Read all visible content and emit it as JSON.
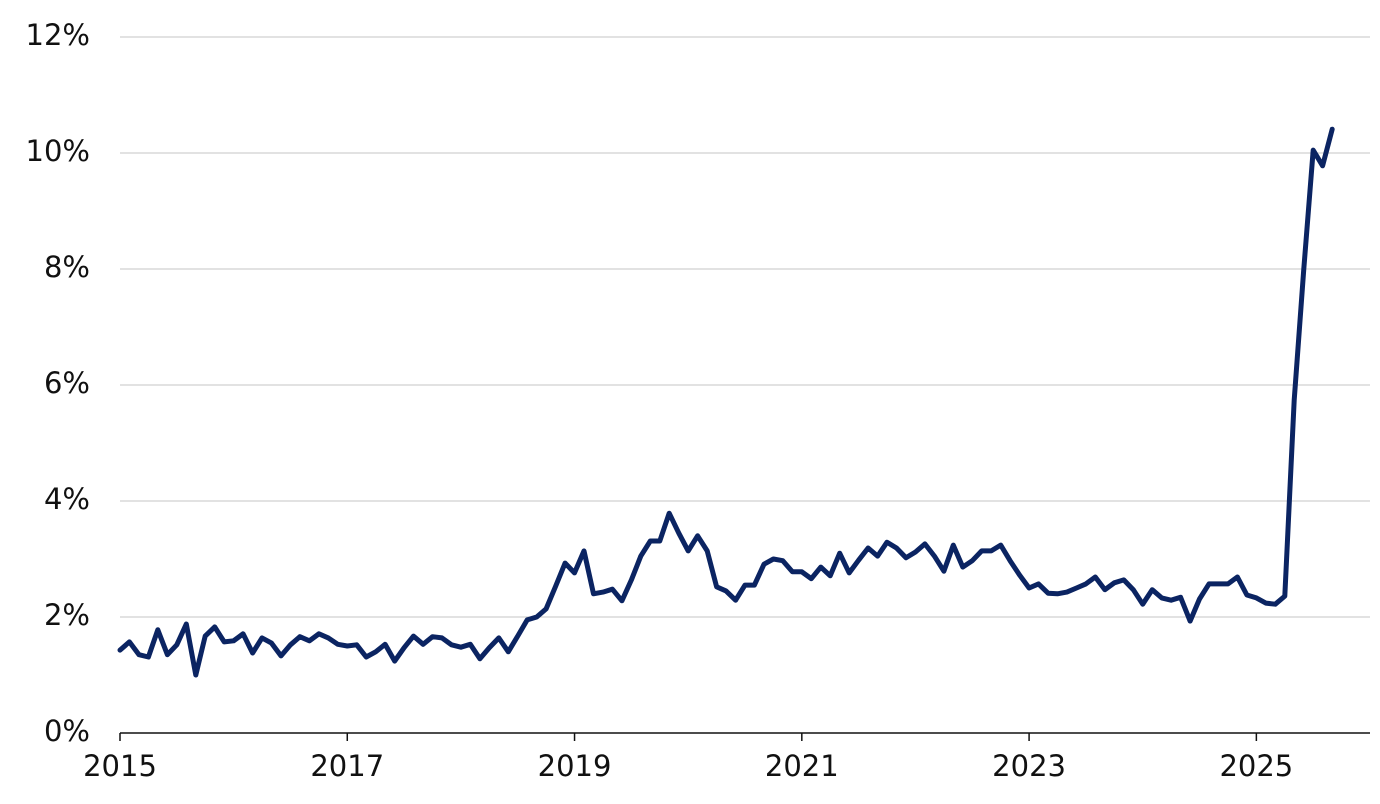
{
  "chart_data": {
    "type": "line",
    "x": [
      2015,
      2015.083,
      2015.167,
      2015.25,
      2015.333,
      2015.417,
      2015.5,
      2015.583,
      2015.667,
      2015.75,
      2015.833,
      2015.917,
      2016,
      2016.083,
      2016.167,
      2016.25,
      2016.333,
      2016.417,
      2016.5,
      2016.583,
      2016.667,
      2016.75,
      2016.833,
      2016.917,
      2017,
      2017.083,
      2017.167,
      2017.25,
      2017.333,
      2017.417,
      2017.5,
      2017.583,
      2017.667,
      2017.75,
      2017.833,
      2017.917,
      2018,
      2018.083,
      2018.167,
      2018.25,
      2018.333,
      2018.417,
      2018.5,
      2018.583,
      2018.667,
      2018.75,
      2018.833,
      2018.917,
      2019,
      2019.083,
      2019.167,
      2019.25,
      2019.333,
      2019.417,
      2019.5,
      2019.583,
      2019.667,
      2019.75,
      2019.833,
      2019.917,
      2020,
      2020.083,
      2020.167,
      2020.25,
      2020.333,
      2020.417,
      2020.5,
      2020.583,
      2020.667,
      2020.75,
      2020.833,
      2020.917,
      2021,
      2021.083,
      2021.167,
      2021.25,
      2021.333,
      2021.417,
      2021.5,
      2021.583,
      2021.667,
      2021.75,
      2021.833,
      2021.917,
      2022,
      2022.083,
      2022.167,
      2022.25,
      2022.333,
      2022.417,
      2022.5,
      2022.583,
      2022.667,
      2022.75,
      2022.833,
      2022.917,
      2023,
      2023.083,
      2023.167,
      2023.25,
      2023.333,
      2023.417,
      2023.5,
      2023.583,
      2023.667,
      2023.75,
      2023.833,
      2023.917,
      2024,
      2024.083,
      2024.167,
      2024.25,
      2024.333,
      2024.417,
      2024.5,
      2024.583,
      2024.667,
      2024.75,
      2024.833,
      2024.917,
      2025,
      2025.083,
      2025.167,
      2025.25,
      2025.333,
      2025.417,
      2025.5,
      2025.583,
      2025.667
    ],
    "series": [
      {
        "color": "#0b2462",
        "values": [
          1.43,
          1.57,
          1.35,
          1.31,
          1.78,
          1.35,
          1.52,
          1.88,
          1.0,
          1.67,
          1.83,
          1.57,
          1.59,
          1.71,
          1.38,
          1.64,
          1.55,
          1.33,
          1.52,
          1.66,
          1.59,
          1.71,
          1.64,
          1.53,
          1.5,
          1.52,
          1.31,
          1.4,
          1.53,
          1.24,
          1.47,
          1.67,
          1.53,
          1.66,
          1.64,
          1.52,
          1.48,
          1.53,
          1.28,
          1.47,
          1.64,
          1.4,
          1.67,
          1.95,
          2.0,
          2.14,
          2.53,
          2.93,
          2.76,
          3.14,
          2.4,
          2.43,
          2.48,
          2.28,
          2.64,
          3.05,
          3.31,
          3.31,
          3.79,
          3.45,
          3.14,
          3.4,
          3.14,
          2.52,
          2.45,
          2.29,
          2.55,
          2.55,
          2.91,
          3.0,
          2.97,
          2.78,
          2.78,
          2.66,
          2.86,
          2.71,
          3.1,
          2.76,
          2.98,
          3.19,
          3.05,
          3.29,
          3.19,
          3.02,
          3.12,
          3.26,
          3.05,
          2.79,
          3.24,
          2.86,
          2.97,
          3.14,
          3.14,
          3.24,
          2.97,
          2.72,
          2.5,
          2.57,
          2.41,
          2.4,
          2.43,
          2.5,
          2.57,
          2.69,
          2.47,
          2.59,
          2.64,
          2.47,
          2.22,
          2.47,
          2.33,
          2.29,
          2.34,
          1.93,
          2.31,
          2.57,
          2.57,
          2.57,
          2.69,
          2.38,
          2.33,
          2.24,
          2.22,
          2.36,
          5.74,
          7.98,
          10.05,
          9.78,
          10.41
        ]
      }
    ],
    "xlim": [
      2015,
      2026
    ],
    "xticks": [
      2015,
      2017,
      2019,
      2021,
      2023,
      2025
    ],
    "ylim": [
      0,
      12
    ],
    "yticks": [
      {
        "value": 0,
        "label": "0%"
      },
      {
        "value": 2,
        "label": "2%"
      },
      {
        "value": 4,
        "label": "4%"
      },
      {
        "value": 6,
        "label": "6%"
      },
      {
        "value": 8,
        "label": "8%"
      },
      {
        "value": 10,
        "label": "10%"
      },
      {
        "value": 12,
        "label": "12%"
      }
    ],
    "grid": true
  }
}
